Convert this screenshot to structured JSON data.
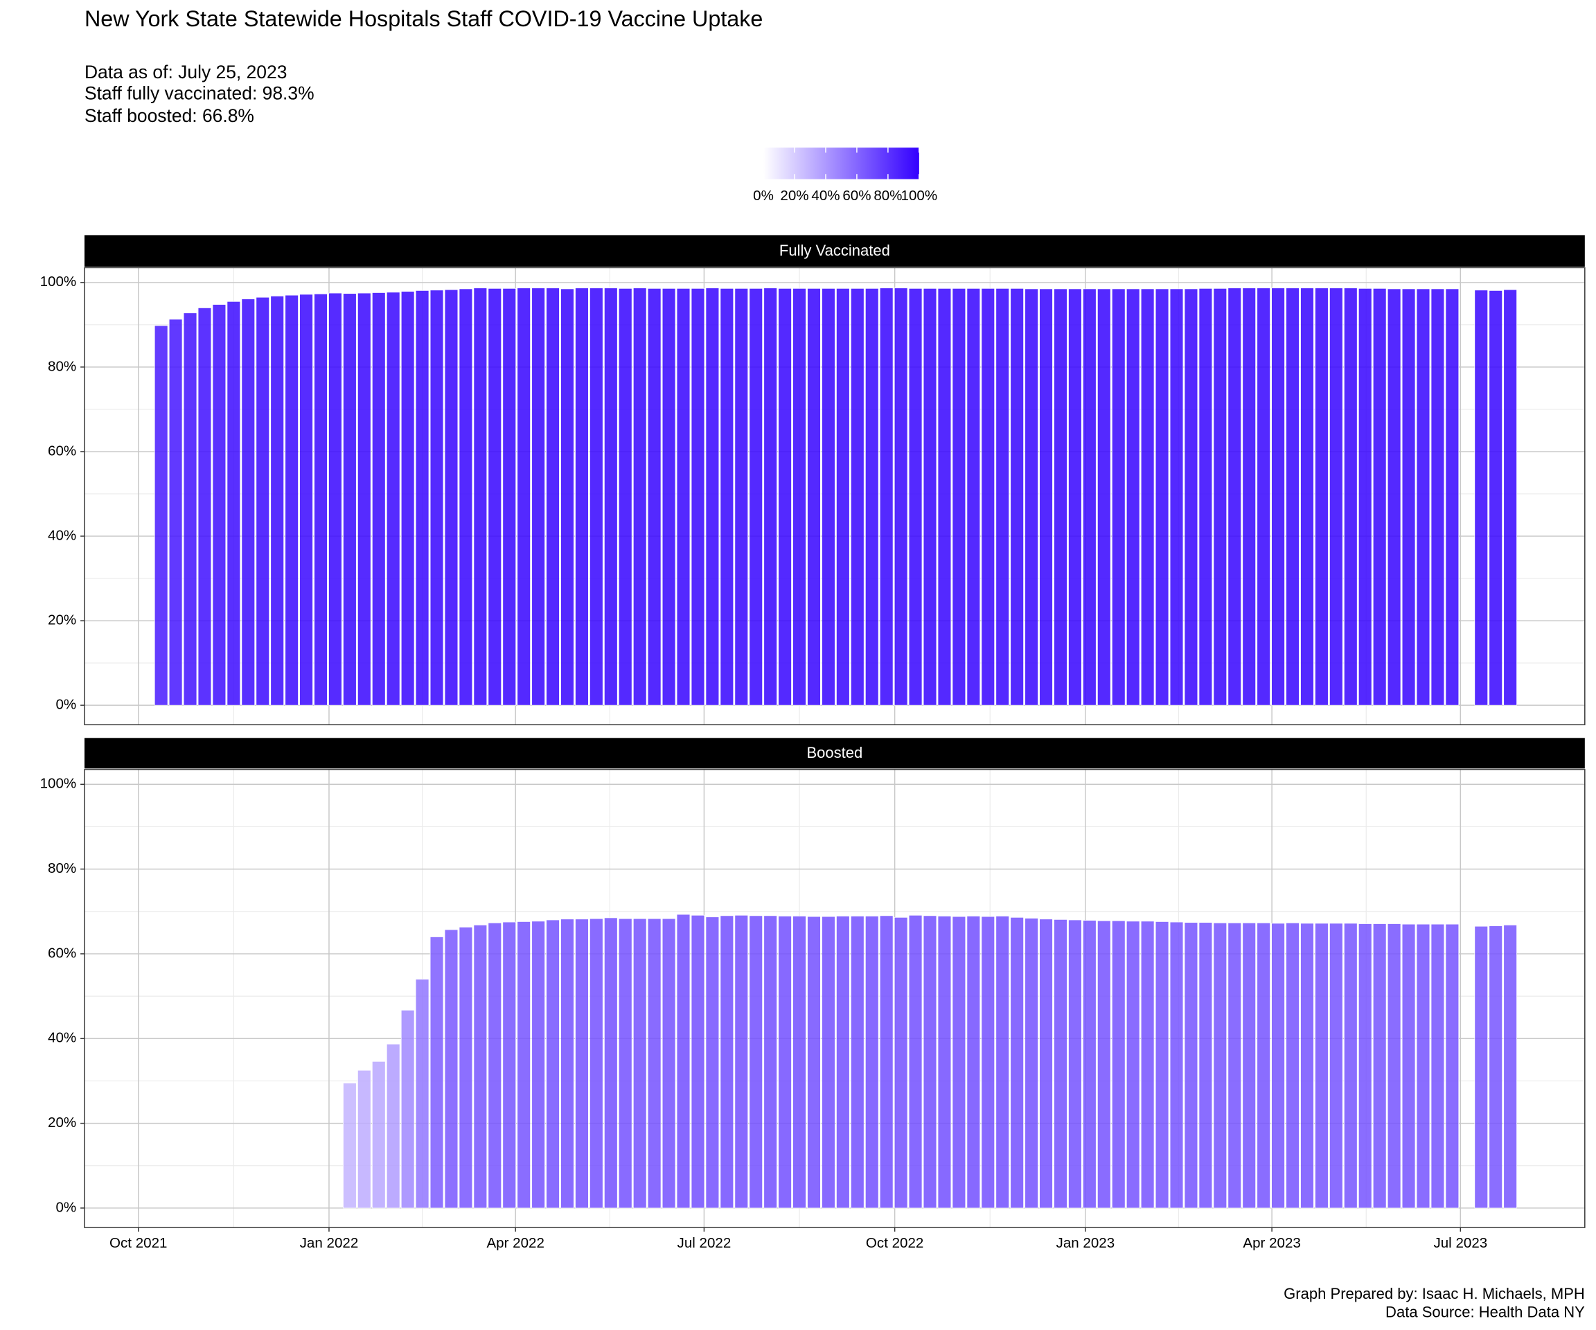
{
  "chart_data": {
    "type": "bar",
    "title": "New York State Statewide Hospitals Staff COVID-19 Vaccine Uptake",
    "subtitle": [
      "Data as of: July 25, 2023",
      "Staff fully vaccinated: 98.3%",
      "Staff boosted: 66.8%"
    ],
    "caption": [
      "Graph Prepared by: Isaac H. Michaels, MPH",
      "Data Source: Health Data NY"
    ],
    "x": [
      "2021-10-12",
      "2021-10-19",
      "2021-10-26",
      "2021-11-02",
      "2021-11-09",
      "2021-11-16",
      "2021-11-23",
      "2021-11-30",
      "2021-12-07",
      "2021-12-14",
      "2021-12-21",
      "2021-12-28",
      "2022-01-04",
      "2022-01-11",
      "2022-01-18",
      "2022-01-25",
      "2022-02-01",
      "2022-02-08",
      "2022-02-15",
      "2022-02-22",
      "2022-03-01",
      "2022-03-08",
      "2022-03-15",
      "2022-03-22",
      "2022-03-29",
      "2022-04-05",
      "2022-04-12",
      "2022-04-19",
      "2022-04-26",
      "2022-05-03",
      "2022-05-10",
      "2022-05-17",
      "2022-05-24",
      "2022-05-31",
      "2022-06-07",
      "2022-06-14",
      "2022-06-21",
      "2022-06-28",
      "2022-07-05",
      "2022-07-12",
      "2022-07-19",
      "2022-07-26",
      "2022-08-02",
      "2022-08-09",
      "2022-08-16",
      "2022-08-23",
      "2022-08-30",
      "2022-09-06",
      "2022-09-13",
      "2022-09-20",
      "2022-09-27",
      "2022-10-04",
      "2022-10-11",
      "2022-10-18",
      "2022-10-25",
      "2022-11-01",
      "2022-11-08",
      "2022-11-15",
      "2022-11-22",
      "2022-11-29",
      "2022-12-06",
      "2022-12-13",
      "2022-12-20",
      "2022-12-27",
      "2023-01-03",
      "2023-01-10",
      "2023-01-17",
      "2023-01-24",
      "2023-01-31",
      "2023-02-07",
      "2023-02-14",
      "2023-02-21",
      "2023-02-28",
      "2023-03-07",
      "2023-03-14",
      "2023-03-21",
      "2023-03-28",
      "2023-04-04",
      "2023-04-11",
      "2023-04-18",
      "2023-04-25",
      "2023-05-02",
      "2023-05-09",
      "2023-05-16",
      "2023-05-23",
      "2023-05-30",
      "2023-06-06",
      "2023-06-13",
      "2023-06-20",
      "2023-06-27",
      "2023-07-04",
      "2023-07-11",
      "2023-07-18",
      "2023-07-25"
    ],
    "series": [
      {
        "name": "Fully Vaccinated",
        "values": [
          89.8,
          91.3,
          92.8,
          94.0,
          94.8,
          95.5,
          96.1,
          96.5,
          96.8,
          97.0,
          97.2,
          97.3,
          97.5,
          97.4,
          97.5,
          97.6,
          97.7,
          97.9,
          98.1,
          98.2,
          98.3,
          98.5,
          98.7,
          98.6,
          98.6,
          98.7,
          98.7,
          98.7,
          98.5,
          98.7,
          98.7,
          98.7,
          98.6,
          98.7,
          98.6,
          98.6,
          98.6,
          98.6,
          98.7,
          98.6,
          98.6,
          98.6,
          98.7,
          98.6,
          98.6,
          98.6,
          98.6,
          98.6,
          98.6,
          98.6,
          98.7,
          98.7,
          98.6,
          98.6,
          98.6,
          98.6,
          98.6,
          98.6,
          98.6,
          98.6,
          98.5,
          98.5,
          98.5,
          98.5,
          98.5,
          98.5,
          98.5,
          98.5,
          98.5,
          98.5,
          98.5,
          98.5,
          98.6,
          98.6,
          98.7,
          98.7,
          98.7,
          98.7,
          98.7,
          98.7,
          98.7,
          98.7,
          98.7,
          98.6,
          98.6,
          98.5,
          98.5,
          98.5,
          98.5,
          98.5,
          null,
          98.2,
          98.1,
          98.3
        ]
      },
      {
        "name": "Boosted",
        "values": [
          null,
          null,
          null,
          null,
          null,
          null,
          null,
          null,
          null,
          null,
          null,
          null,
          null,
          29.5,
          32.5,
          34.6,
          38.7,
          46.7,
          54.0,
          64.0,
          65.7,
          66.3,
          66.8,
          67.3,
          67.5,
          67.6,
          67.7,
          68.0,
          68.2,
          68.2,
          68.3,
          68.5,
          68.3,
          68.3,
          68.3,
          68.3,
          69.3,
          69.1,
          68.7,
          69.0,
          69.1,
          69.0,
          69.0,
          68.9,
          68.9,
          68.8,
          68.8,
          68.9,
          68.9,
          68.9,
          69.0,
          68.6,
          69.1,
          69.0,
          68.9,
          68.8,
          68.9,
          68.8,
          68.9,
          68.6,
          68.4,
          68.2,
          68.1,
          68.0,
          67.9,
          67.8,
          67.8,
          67.7,
          67.7,
          67.6,
          67.5,
          67.4,
          67.4,
          67.3,
          67.3,
          67.3,
          67.3,
          67.2,
          67.3,
          67.2,
          67.2,
          67.2,
          67.2,
          67.1,
          67.1,
          67.1,
          67.0,
          67.0,
          67.0,
          67.0,
          null,
          66.5,
          66.6,
          66.8
        ]
      }
    ],
    "xlim": [
      "2021-09-05",
      "2023-08-30"
    ],
    "xticks": [
      {
        "value": "2021-10-01",
        "label": "Oct 2021"
      },
      {
        "value": "2022-01-01",
        "label": "Jan 2022"
      },
      {
        "value": "2022-04-01",
        "label": "Apr 2022"
      },
      {
        "value": "2022-07-01",
        "label": "Jul 2022"
      },
      {
        "value": "2022-10-01",
        "label": "Oct 2022"
      },
      {
        "value": "2023-01-01",
        "label": "Jan 2023"
      },
      {
        "value": "2023-04-01",
        "label": "Apr 2023"
      },
      {
        "value": "2023-07-01",
        "label": "Jul 2023"
      }
    ],
    "ylim": [
      -4.6,
      103.5
    ],
    "yticks": [
      {
        "value": 0,
        "label": "0%"
      },
      {
        "value": 20,
        "label": "20%"
      },
      {
        "value": 40,
        "label": "40%"
      },
      {
        "value": 60,
        "label": "60%"
      },
      {
        "value": 80,
        "label": "80%"
      },
      {
        "value": 100,
        "label": "100%"
      }
    ],
    "grid": true,
    "fill_scale": {
      "low": "#ffffff",
      "high": "#3300ff",
      "limits": [
        0,
        100
      ],
      "ticks": [
        {
          "value": 0,
          "label": "0%"
        },
        {
          "value": 20,
          "label": "20%"
        },
        {
          "value": 40,
          "label": "40%"
        },
        {
          "value": 60,
          "label": "60%"
        },
        {
          "value": 80,
          "label": "80%"
        },
        {
          "value": 100,
          "label": "100%"
        }
      ]
    }
  }
}
